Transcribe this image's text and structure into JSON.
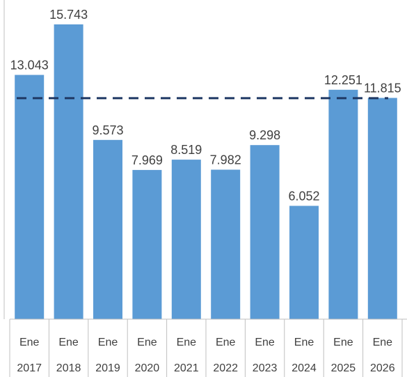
{
  "chart_data": {
    "type": "bar",
    "categories": [
      [
        "Ene",
        "2017"
      ],
      [
        "Ene",
        "2018"
      ],
      [
        "Ene",
        "2019"
      ],
      [
        "Ene",
        "2020"
      ],
      [
        "Ene",
        "2021"
      ],
      [
        "Ene",
        "2022"
      ],
      [
        "Ene",
        "2023"
      ],
      [
        "Ene",
        "2024"
      ],
      [
        "Ene",
        "2025"
      ],
      [
        "Ene",
        "2026"
      ]
    ],
    "values": [
      13043,
      15743,
      9573,
      7969,
      8519,
      7982,
      9298,
      6052,
      12251,
      11815
    ],
    "value_labels": [
      "13.043",
      "15.743",
      "9.573",
      "7.969",
      "8.519",
      "7.982",
      "9.298",
      "6.052",
      "12.251",
      "11.815"
    ],
    "reference_line": {
      "value": 11800,
      "style": "dashed"
    },
    "title": "",
    "xlabel": "",
    "ylabel": "",
    "ylim": [
      0,
      17000
    ],
    "grid": false,
    "legend": "none",
    "colors": {
      "bar": "#5B9BD5",
      "reference_line": "#1F3864",
      "text": "#404040",
      "axis": "#BFBFBF"
    }
  }
}
